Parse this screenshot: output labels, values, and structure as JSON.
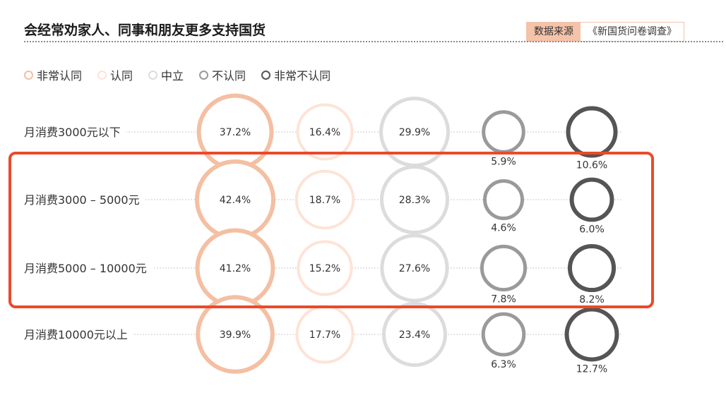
{
  "title": "会经常劝家人、同事和朋友更多支持国货",
  "source": {
    "label": "数据来源",
    "value": "《新国货问卷调查》"
  },
  "chart_data": {
    "type": "bubble-table",
    "title": "会经常劝家人、同事和朋友更多支持国货",
    "source": "《新国货问卷调查》",
    "series": [
      {
        "name": "非常认同",
        "color": "#f4bfa2"
      },
      {
        "name": "认同",
        "color": "#fde3d7"
      },
      {
        "name": "中立",
        "color": "#dcdcdc"
      },
      {
        "name": "不认同",
        "color": "#9a9a9a"
      },
      {
        "name": "非常不认同",
        "color": "#555555"
      }
    ],
    "categories": [
      "月消费3000元以下",
      "月消费3000 – 5000元",
      "月消费5000 – 10000元",
      "月消费10000元以上"
    ],
    "values": [
      [
        37.2,
        16.4,
        29.9,
        5.9,
        10.6
      ],
      [
        42.4,
        18.7,
        28.3,
        4.6,
        6.0
      ],
      [
        41.2,
        15.2,
        27.6,
        7.8,
        8.2
      ],
      [
        39.9,
        17.7,
        23.4,
        6.3,
        12.7
      ]
    ],
    "labels": [
      [
        "37.2%",
        "16.4%",
        "29.9%",
        "5.9%",
        "10.6%"
      ],
      [
        "42.4%",
        "18.7%",
        "28.3%",
        "4.6%",
        "6.0%"
      ],
      [
        "41.2%",
        "15.2%",
        "27.6%",
        "7.8%",
        "8.2%"
      ],
      [
        "39.9%",
        "17.7%",
        "23.4%",
        "6.3%",
        "12.7%"
      ]
    ],
    "highlighted_rows": [
      1,
      2
    ]
  }
}
